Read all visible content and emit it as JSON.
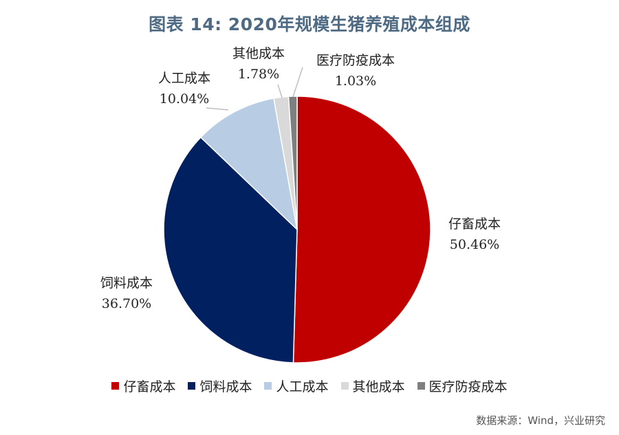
{
  "chart_data": {
    "type": "pie",
    "title": "图表 14: 2020年规模生猪养殖成本组成",
    "slices": [
      {
        "label": "仔畜成本",
        "value": 50.46,
        "display": "50.46%",
        "color": "#c00000"
      },
      {
        "label": "饲料成本",
        "value": 36.7,
        "display": "36.70%",
        "color": "#002060"
      },
      {
        "label": "人工成本",
        "value": 10.04,
        "display": "10.04%",
        "color": "#b8cce4"
      },
      {
        "label": "其他成本",
        "value": 1.78,
        "display": "1.78%",
        "color": "#d9d9d9"
      },
      {
        "label": "医疗防疫成本",
        "value": 1.03,
        "display": "1.03%",
        "color": "#7f7f7f"
      }
    ],
    "legend_position": "bottom"
  },
  "source": "数据来源：Wind，兴业研究"
}
